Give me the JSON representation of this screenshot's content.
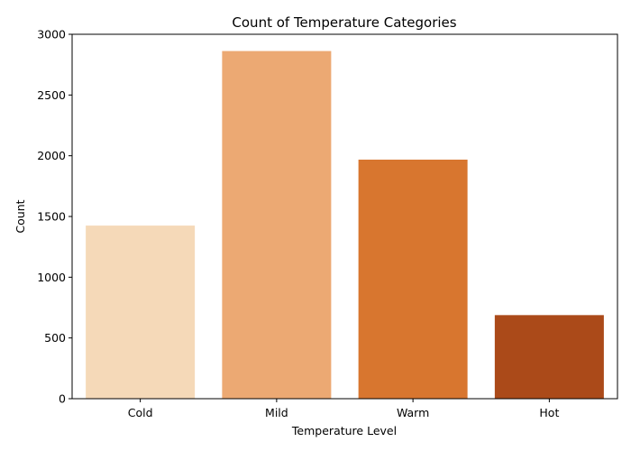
{
  "chart_data": {
    "type": "bar",
    "title": "Count of Temperature Categories",
    "xlabel": "Temperature Level",
    "ylabel": "Count",
    "categories": [
      "Cold",
      "Mild",
      "Warm",
      "Hot"
    ],
    "values": [
      1425,
      2862,
      1968,
      688
    ],
    "colors": [
      "#f5d9b8",
      "#eca973",
      "#d8762f",
      "#ab4a19"
    ],
    "ylim": [
      0,
      3000
    ],
    "yticks": [
      0,
      500,
      1000,
      1500,
      2000,
      2500,
      3000
    ],
    "grid": false,
    "legend": "none"
  }
}
